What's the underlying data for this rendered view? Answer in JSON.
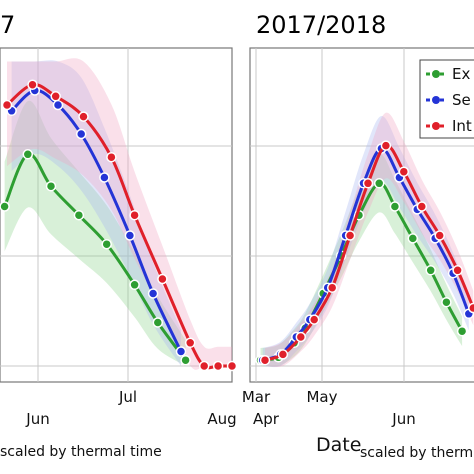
{
  "chart_data": [
    {
      "type": "line",
      "title": "7",
      "xlabel_main": "",
      "xlabel_sub": "scaled by thermal time",
      "x_ticks": [
        "Jun",
        "Jul",
        "Aug"
      ],
      "grid": true,
      "series": [
        {
          "key": "early",
          "color": "#2e9e32",
          "band_color": "#8fd48f",
          "x": [
            0.02,
            0.12,
            0.22,
            0.34,
            0.46,
            0.58,
            0.68,
            0.8
          ],
          "y": [
            0.55,
            0.73,
            0.62,
            0.52,
            0.42,
            0.28,
            0.15,
            0.02
          ]
        },
        {
          "key": "semi",
          "color": "#2434d6",
          "band_color": "#a9b8f0",
          "x": [
            0.05,
            0.15,
            0.25,
            0.35,
            0.45,
            0.56,
            0.66,
            0.78
          ],
          "y": [
            0.88,
            0.95,
            0.9,
            0.8,
            0.65,
            0.45,
            0.25,
            0.05
          ]
        },
        {
          "key": "inter",
          "color": "#e0202a",
          "band_color": "#f2a7c4",
          "x": [
            0.03,
            0.14,
            0.24,
            0.36,
            0.48,
            0.58,
            0.7,
            0.82,
            0.88,
            0.94,
            1.0
          ],
          "y": [
            0.9,
            0.97,
            0.93,
            0.86,
            0.72,
            0.52,
            0.3,
            0.08,
            0.0,
            0.0,
            0.0
          ]
        }
      ]
    },
    {
      "type": "line",
      "title": "2017/2018",
      "xlabel_main": "Date",
      "xlabel_sub": "scaled by thermal time",
      "x_ticks": [
        "Mar",
        "Apr",
        "May",
        "Jun"
      ],
      "grid": true,
      "legend_position": "top-right",
      "series": [
        {
          "key": "early",
          "label": "Ex",
          "color": "#2e9e32",
          "band_color": "#8fd48f",
          "x": [
            0.02,
            0.1,
            0.17,
            0.22,
            0.3,
            0.38,
            0.46,
            0.55,
            0.62,
            0.7,
            0.78,
            0.85,
            0.92
          ],
          "y": [
            0.02,
            0.03,
            0.08,
            0.13,
            0.25,
            0.38,
            0.52,
            0.63,
            0.55,
            0.44,
            0.33,
            0.22,
            0.12
          ]
        },
        {
          "key": "semi",
          "label": "Se",
          "color": "#2434d6",
          "band_color": "#a9b8f0",
          "x": [
            0.03,
            0.11,
            0.18,
            0.24,
            0.32,
            0.4,
            0.48,
            0.56,
            0.64,
            0.72,
            0.8,
            0.88,
            0.95
          ],
          "y": [
            0.02,
            0.04,
            0.1,
            0.16,
            0.27,
            0.45,
            0.63,
            0.75,
            0.65,
            0.54,
            0.44,
            0.32,
            0.18
          ]
        },
        {
          "key": "inter",
          "label": "Int",
          "color": "#e0202a",
          "band_color": "#f2a7c4",
          "x": [
            0.04,
            0.12,
            0.2,
            0.26,
            0.34,
            0.42,
            0.5,
            0.58,
            0.66,
            0.74,
            0.82,
            0.9,
            0.97
          ],
          "y": [
            0.02,
            0.04,
            0.1,
            0.16,
            0.27,
            0.45,
            0.63,
            0.76,
            0.67,
            0.55,
            0.45,
            0.33,
            0.2
          ]
        }
      ]
    }
  ]
}
